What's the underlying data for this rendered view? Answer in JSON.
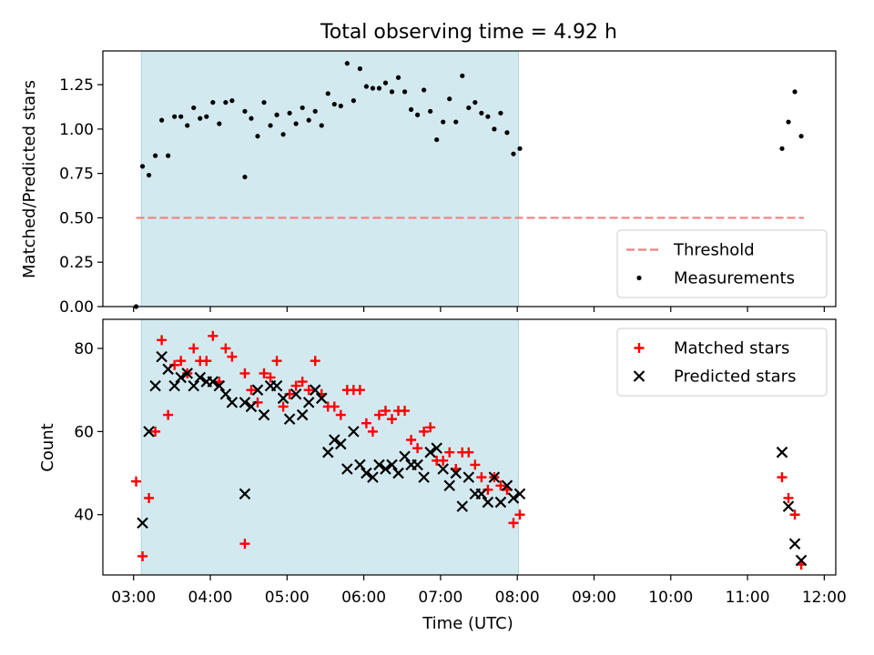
{
  "figure": {
    "title": "Total observing time = 4.92 h"
  },
  "chart_data": [
    {
      "type": "scatter",
      "panel": "top",
      "xlabel": "",
      "ylabel": "Matched/Predicted stars",
      "xlim": [
        "02:36",
        "12:09"
      ],
      "ylim": [
        0,
        1.44
      ],
      "y_ticks": [
        0.0,
        0.25,
        0.5,
        0.75,
        1.0,
        1.25
      ],
      "y_tick_labels": [
        "0.00",
        "0.25",
        "0.50",
        "0.75",
        "1.00",
        "1.25"
      ],
      "shaded_span": {
        "x0": "03:06",
        "x1": "08:01",
        "color": "#d3e9f0"
      },
      "threshold": {
        "name": "Threshold",
        "y": 0.5,
        "x_from": "03:02",
        "x_to": "11:44",
        "color": "#f08080"
      },
      "legend": {
        "placement": "lower right",
        "entries": [
          "Threshold",
          "Measurements"
        ]
      },
      "series": [
        {
          "name": "Measurements",
          "marker": "dot",
          "color": "#000000",
          "points": [
            [
              "03:02",
              0.0
            ],
            [
              "03:07",
              0.79
            ],
            [
              "03:12",
              0.74
            ],
            [
              "03:17",
              0.85
            ],
            [
              "03:22",
              1.05
            ],
            [
              "03:27",
              0.85
            ],
            [
              "03:32",
              1.07
            ],
            [
              "03:37",
              1.07
            ],
            [
              "03:42",
              1.02
            ],
            [
              "03:47",
              1.12
            ],
            [
              "03:52",
              1.06
            ],
            [
              "03:57",
              1.07
            ],
            [
              "04:02",
              1.15
            ],
            [
              "04:07",
              1.03
            ],
            [
              "04:12",
              1.15
            ],
            [
              "04:17",
              1.16
            ],
            [
              "04:27",
              0.73
            ],
            [
              "04:27",
              1.1
            ],
            [
              "04:32",
              1.06
            ],
            [
              "04:37",
              0.96
            ],
            [
              "04:42",
              1.15
            ],
            [
              "04:47",
              1.02
            ],
            [
              "04:52",
              1.08
            ],
            [
              "04:57",
              0.97
            ],
            [
              "05:02",
              1.09
            ],
            [
              "05:07",
              1.03
            ],
            [
              "05:12",
              1.12
            ],
            [
              "05:17",
              1.05
            ],
            [
              "05:22",
              1.1
            ],
            [
              "05:27",
              1.02
            ],
            [
              "05:32",
              1.2
            ],
            [
              "05:37",
              1.14
            ],
            [
              "05:42",
              1.13
            ],
            [
              "05:47",
              1.37
            ],
            [
              "05:52",
              1.16
            ],
            [
              "05:57",
              1.34
            ],
            [
              "06:02",
              1.24
            ],
            [
              "06:07",
              1.23
            ],
            [
              "06:12",
              1.23
            ],
            [
              "06:17",
              1.26
            ],
            [
              "06:22",
              1.21
            ],
            [
              "06:27",
              1.29
            ],
            [
              "06:32",
              1.21
            ],
            [
              "06:37",
              1.11
            ],
            [
              "06:42",
              1.08
            ],
            [
              "06:47",
              1.22
            ],
            [
              "06:52",
              1.1
            ],
            [
              "06:57",
              0.94
            ],
            [
              "07:02",
              1.04
            ],
            [
              "07:07",
              1.17
            ],
            [
              "07:12",
              1.04
            ],
            [
              "07:17",
              1.3
            ],
            [
              "07:22",
              1.12
            ],
            [
              "07:27",
              1.15
            ],
            [
              "07:32",
              1.09
            ],
            [
              "07:37",
              1.07
            ],
            [
              "07:42",
              1.0
            ],
            [
              "07:47",
              1.09
            ],
            [
              "07:52",
              0.98
            ],
            [
              "07:57",
              0.86
            ],
            [
              "08:02",
              0.89
            ],
            [
              "11:27",
              0.89
            ],
            [
              "11:32",
              1.04
            ],
            [
              "11:37",
              1.21
            ],
            [
              "11:42",
              0.96
            ]
          ]
        }
      ]
    },
    {
      "type": "scatter",
      "panel": "bottom",
      "xlabel": "Time (UTC)",
      "ylabel": "Count",
      "xlim": [
        "02:36",
        "12:09"
      ],
      "ylim": [
        25.5,
        87
      ],
      "y_ticks": [
        40,
        60,
        80
      ],
      "y_tick_labels": [
        "40",
        "60",
        "80"
      ],
      "x_ticks": [
        "03:00",
        "04:00",
        "05:00",
        "06:00",
        "07:00",
        "08:00",
        "09:00",
        "10:00",
        "11:00",
        "12:00"
      ],
      "shaded_span": {
        "x0": "03:06",
        "x1": "08:01",
        "color": "#d3e9f0"
      },
      "legend": {
        "placement": "upper right",
        "entries": [
          "Matched stars",
          "Predicted stars"
        ]
      },
      "series": [
        {
          "name": "Matched stars",
          "marker": "plus",
          "color": "#ff0000",
          "points": [
            [
              "03:02",
              48
            ],
            [
              "03:07",
              30
            ],
            [
              "03:12",
              44
            ],
            [
              "03:17",
              60
            ],
            [
              "03:22",
              82
            ],
            [
              "03:27",
              64
            ],
            [
              "03:32",
              76
            ],
            [
              "03:37",
              77
            ],
            [
              "03:42",
              74
            ],
            [
              "03:47",
              80
            ],
            [
              "03:52",
              77
            ],
            [
              "03:57",
              77
            ],
            [
              "04:02",
              83
            ],
            [
              "04:07",
              72
            ],
            [
              "04:12",
              80
            ],
            [
              "04:17",
              78
            ],
            [
              "04:27",
              33
            ],
            [
              "04:27",
              74
            ],
            [
              "04:32",
              70
            ],
            [
              "04:37",
              67
            ],
            [
              "04:42",
              74
            ],
            [
              "04:47",
              73
            ],
            [
              "04:52",
              77
            ],
            [
              "04:57",
              66
            ],
            [
              "05:02",
              69
            ],
            [
              "05:07",
              71
            ],
            [
              "05:12",
              72
            ],
            [
              "05:17",
              70
            ],
            [
              "05:22",
              77
            ],
            [
              "05:27",
              69
            ],
            [
              "05:32",
              66
            ],
            [
              "05:37",
              66
            ],
            [
              "05:42",
              64
            ],
            [
              "05:47",
              70
            ],
            [
              "05:52",
              70
            ],
            [
              "05:57",
              70
            ],
            [
              "06:02",
              62
            ],
            [
              "06:07",
              60
            ],
            [
              "06:12",
              64
            ],
            [
              "06:17",
              65
            ],
            [
              "06:22",
              63
            ],
            [
              "06:27",
              65
            ],
            [
              "06:32",
              65
            ],
            [
              "06:37",
              58
            ],
            [
              "06:42",
              56
            ],
            [
              "06:47",
              60
            ],
            [
              "06:52",
              61
            ],
            [
              "06:57",
              53
            ],
            [
              "07:02",
              53
            ],
            [
              "07:07",
              55
            ],
            [
              "07:12",
              51
            ],
            [
              "07:17",
              55
            ],
            [
              "07:22",
              55
            ],
            [
              "07:27",
              52
            ],
            [
              "07:32",
              49
            ],
            [
              "07:37",
              46
            ],
            [
              "07:42",
              49
            ],
            [
              "07:47",
              47
            ],
            [
              "07:52",
              46
            ],
            [
              "07:57",
              38
            ],
            [
              "08:02",
              40
            ],
            [
              "11:27",
              49
            ],
            [
              "11:32",
              44
            ],
            [
              "11:37",
              40
            ],
            [
              "11:42",
              28
            ]
          ]
        },
        {
          "name": "Predicted stars",
          "marker": "x",
          "color": "#000000",
          "points": [
            [
              "03:07",
              38
            ],
            [
              "03:12",
              60
            ],
            [
              "03:17",
              71
            ],
            [
              "03:22",
              78
            ],
            [
              "03:27",
              75
            ],
            [
              "03:32",
              71
            ],
            [
              "03:37",
              73
            ],
            [
              "03:42",
              74
            ],
            [
              "03:47",
              71
            ],
            [
              "03:52",
              73
            ],
            [
              "03:57",
              72
            ],
            [
              "04:02",
              72
            ],
            [
              "04:07",
              71
            ],
            [
              "04:12",
              69
            ],
            [
              "04:17",
              67
            ],
            [
              "04:27",
              45
            ],
            [
              "04:27",
              67
            ],
            [
              "04:32",
              66
            ],
            [
              "04:37",
              70
            ],
            [
              "04:42",
              64
            ],
            [
              "04:47",
              71
            ],
            [
              "04:52",
              71
            ],
            [
              "04:57",
              68
            ],
            [
              "05:02",
              63
            ],
            [
              "05:07",
              69
            ],
            [
              "05:12",
              64
            ],
            [
              "05:17",
              67
            ],
            [
              "05:22",
              70
            ],
            [
              "05:27",
              68
            ],
            [
              "05:32",
              55
            ],
            [
              "05:37",
              58
            ],
            [
              "05:42",
              57
            ],
            [
              "05:47",
              51
            ],
            [
              "05:52",
              60
            ],
            [
              "05:57",
              52
            ],
            [
              "06:02",
              50
            ],
            [
              "06:07",
              49
            ],
            [
              "06:12",
              52
            ],
            [
              "06:17",
              51
            ],
            [
              "06:22",
              52
            ],
            [
              "06:27",
              50
            ],
            [
              "06:32",
              54
            ],
            [
              "06:37",
              52
            ],
            [
              "06:42",
              52
            ],
            [
              "06:47",
              49
            ],
            [
              "06:52",
              55
            ],
            [
              "06:57",
              56
            ],
            [
              "07:02",
              51
            ],
            [
              "07:07",
              47
            ],
            [
              "07:12",
              50
            ],
            [
              "07:17",
              42
            ],
            [
              "07:22",
              49
            ],
            [
              "07:27",
              45
            ],
            [
              "07:32",
              45
            ],
            [
              "07:37",
              43
            ],
            [
              "07:42",
              49
            ],
            [
              "07:47",
              43
            ],
            [
              "07:52",
              47
            ],
            [
              "07:57",
              44
            ],
            [
              "08:02",
              45
            ],
            [
              "11:27",
              55
            ],
            [
              "11:32",
              42
            ],
            [
              "11:37",
              33
            ],
            [
              "11:42",
              29
            ]
          ]
        }
      ]
    }
  ]
}
